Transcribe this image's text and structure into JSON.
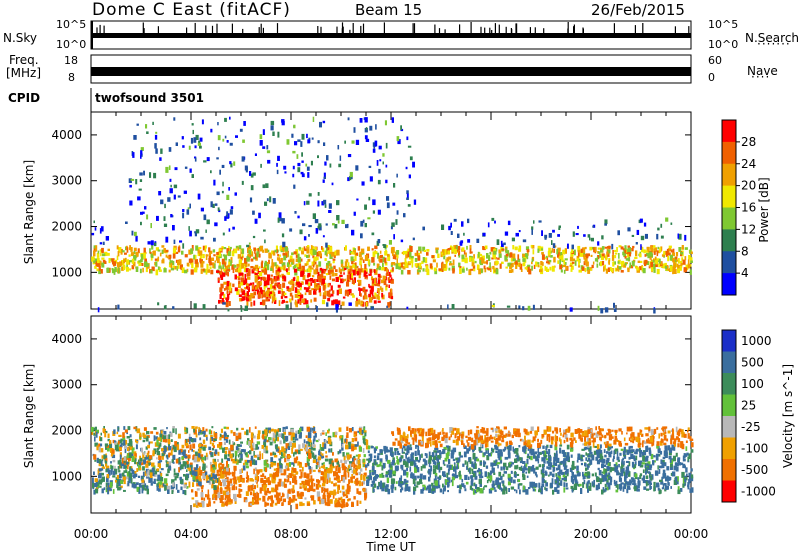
{
  "header": {
    "title": "Dome C East (fitACF)",
    "beam": "Beam 15",
    "date": "26/Feb/2015"
  },
  "top_panels": {
    "nsky_label": "N.Sky",
    "nsky_ticks": [
      "10^5",
      "10^0"
    ],
    "nsearch_label": "N.Search",
    "nsearch_ticks": [
      "10^5",
      "10^0"
    ],
    "freq_label_1": "Freq.",
    "freq_label_2": "[MHz]",
    "freq_ticks": [
      "18",
      "8"
    ],
    "nave_label": "Nave",
    "nave_ticks": [
      "60",
      "0"
    ],
    "cpid_label": "CPID",
    "cpid_value": "twofsound 3501"
  },
  "chart_data": [
    {
      "type": "heatmap",
      "name": "power",
      "ylabel": "Slant Range [km]",
      "yticks": [
        "1000",
        "2000",
        "3000",
        "4000"
      ],
      "ylim": [
        200,
        4500
      ],
      "xlim_hours": [
        0,
        24
      ],
      "colorbar_label": "Power [dB]",
      "colorbar_ticks": [
        "4",
        "8",
        "12",
        "16",
        "20",
        "24",
        "28"
      ],
      "colors": [
        "#0000ff",
        "#1f4fa0",
        "#2e7f4f",
        "#7fc832",
        "#f0e800",
        "#f0a000",
        "#f06000",
        "#ff0000"
      ],
      "bands": [
        {
          "x": [
            0,
            24
          ],
          "y": [
            1050,
            1600
          ],
          "mean": 20
        },
        {
          "x": [
            5,
            12
          ],
          "y": [
            350,
            1100
          ],
          "mean": 26
        },
        {
          "x": [
            0,
            24
          ],
          "y": [
            1600,
            2200
          ],
          "mean": 6
        },
        {
          "x": [
            1.5,
            13
          ],
          "y": [
            2200,
            4400
          ],
          "mean": 6
        },
        {
          "x": [
            0,
            24
          ],
          "y": [
            200,
            350
          ],
          "mean": 10
        }
      ]
    },
    {
      "type": "heatmap",
      "name": "velocity",
      "ylabel": "Slant Range [km]",
      "yticks": [
        "1000",
        "2000",
        "3000",
        "4000"
      ],
      "ylim": [
        200,
        4500
      ],
      "xlim_hours": [
        0,
        24
      ],
      "colorbar_label": "Velocity [m s^-1]",
      "colorbar_ticks": [
        "1000",
        "500",
        "100",
        "25",
        "-25",
        "-100",
        "-500",
        "-1000"
      ],
      "colors": [
        "#1b2fc8",
        "#3a6e9e",
        "#3c8c5a",
        "#62c13a",
        "#b8b8b8",
        "#f0a000",
        "#f07000",
        "#ff0000"
      ],
      "bands": [
        {
          "x": [
            0,
            11
          ],
          "y": [
            1200,
            2100
          ],
          "mean": 0
        },
        {
          "x": [
            4,
            11
          ],
          "y": [
            400,
            1200
          ],
          "mean": -150
        },
        {
          "x": [
            11,
            24
          ],
          "y": [
            700,
            1700
          ],
          "mean": 150
        },
        {
          "x": [
            0,
            5
          ],
          "y": [
            700,
            1200
          ],
          "mean": 80
        },
        {
          "x": [
            12,
            24
          ],
          "y": [
            1700,
            2100
          ],
          "mean": -150
        }
      ]
    }
  ],
  "x_axis": {
    "ticks": [
      "00:00",
      "04:00",
      "08:00",
      "12:00",
      "16:00",
      "20:00",
      "00:00"
    ],
    "label": "Time UT"
  }
}
